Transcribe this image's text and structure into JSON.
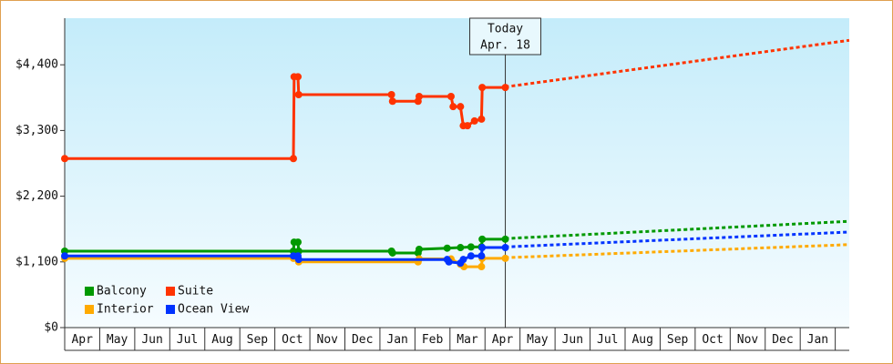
{
  "chart_data": {
    "type": "line",
    "step_markers": true,
    "xlim": [
      0,
      22.4
    ],
    "months": [
      "Apr",
      "May",
      "Jun",
      "Jul",
      "Aug",
      "Sep",
      "Oct",
      "Nov",
      "Dec",
      "Jan",
      "Feb",
      "Mar",
      "Apr",
      "May",
      "Jun",
      "Jul",
      "Aug",
      "Sep",
      "Oct",
      "Nov",
      "Dec",
      "Jan"
    ],
    "ylim": [
      0,
      5180
    ],
    "yticks": [
      {
        "value": 0,
        "label": "$0"
      },
      {
        "value": 1100,
        "label": "$1,100"
      },
      {
        "value": 2200,
        "label": "$2,200"
      },
      {
        "value": 3300,
        "label": "$3,300"
      },
      {
        "value": 4400,
        "label": "$4,400"
      }
    ],
    "grid": false,
    "today": {
      "x": 12.58,
      "label": "Today",
      "date": "Apr. 18"
    },
    "series": [
      {
        "name": "Balcony",
        "color": "#009900",
        "x": [
          0,
          6.53,
          6.55,
          6.66,
          6.68,
          9.33,
          9.36,
          10.09,
          10.12,
          10.92,
          11.3,
          11.6,
          11.9,
          11.92,
          12.58
        ],
        "values": [
          1280,
          1280,
          1430,
          1430,
          1280,
          1280,
          1250,
          1250,
          1310,
          1330,
          1340,
          1350,
          1350,
          1480,
          1480
        ],
        "forecast_x": [
          12.58,
          22.4
        ],
        "forecast_values": [
          1490,
          1780
        ]
      },
      {
        "name": "Suite",
        "color": "#ff3300",
        "x": [
          0,
          6.53,
          6.55,
          6.66,
          6.68,
          9.33,
          9.36,
          10.09,
          10.12,
          11.03,
          11.09,
          11.3,
          11.38,
          11.5,
          11.7,
          11.9,
          11.92,
          12.58
        ],
        "values": [
          2830,
          2830,
          4200,
          4200,
          3900,
          3900,
          3790,
          3790,
          3870,
          3870,
          3700,
          3700,
          3380,
          3380,
          3460,
          3490,
          4020,
          4020
        ],
        "forecast_x": [
          12.58,
          22.4
        ],
        "forecast_values": [
          4030,
          4810
        ]
      },
      {
        "name": "Interior",
        "color": "#ffaa00",
        "x": [
          0,
          6.53,
          6.66,
          6.68,
          10.09,
          10.12,
          11.03,
          11.3,
          11.4,
          11.9,
          11.92,
          12.58
        ],
        "values": [
          1160,
          1160,
          1160,
          1100,
          1100,
          1150,
          1150,
          1060,
          1020,
          1020,
          1160,
          1160
        ],
        "forecast_x": [
          12.58,
          22.4
        ],
        "forecast_values": [
          1170,
          1390
        ]
      },
      {
        "name": "Ocean View",
        "color": "#0033ff",
        "x": [
          0,
          6.53,
          6.66,
          6.68,
          10.92,
          10.97,
          11.3,
          11.38,
          11.6,
          11.9,
          11.92,
          12.58
        ],
        "values": [
          1200,
          1200,
          1200,
          1140,
          1140,
          1100,
          1080,
          1140,
          1200,
          1200,
          1340,
          1340
        ],
        "forecast_x": [
          12.58,
          22.4
        ],
        "forecast_values": [
          1350,
          1600
        ]
      }
    ]
  }
}
